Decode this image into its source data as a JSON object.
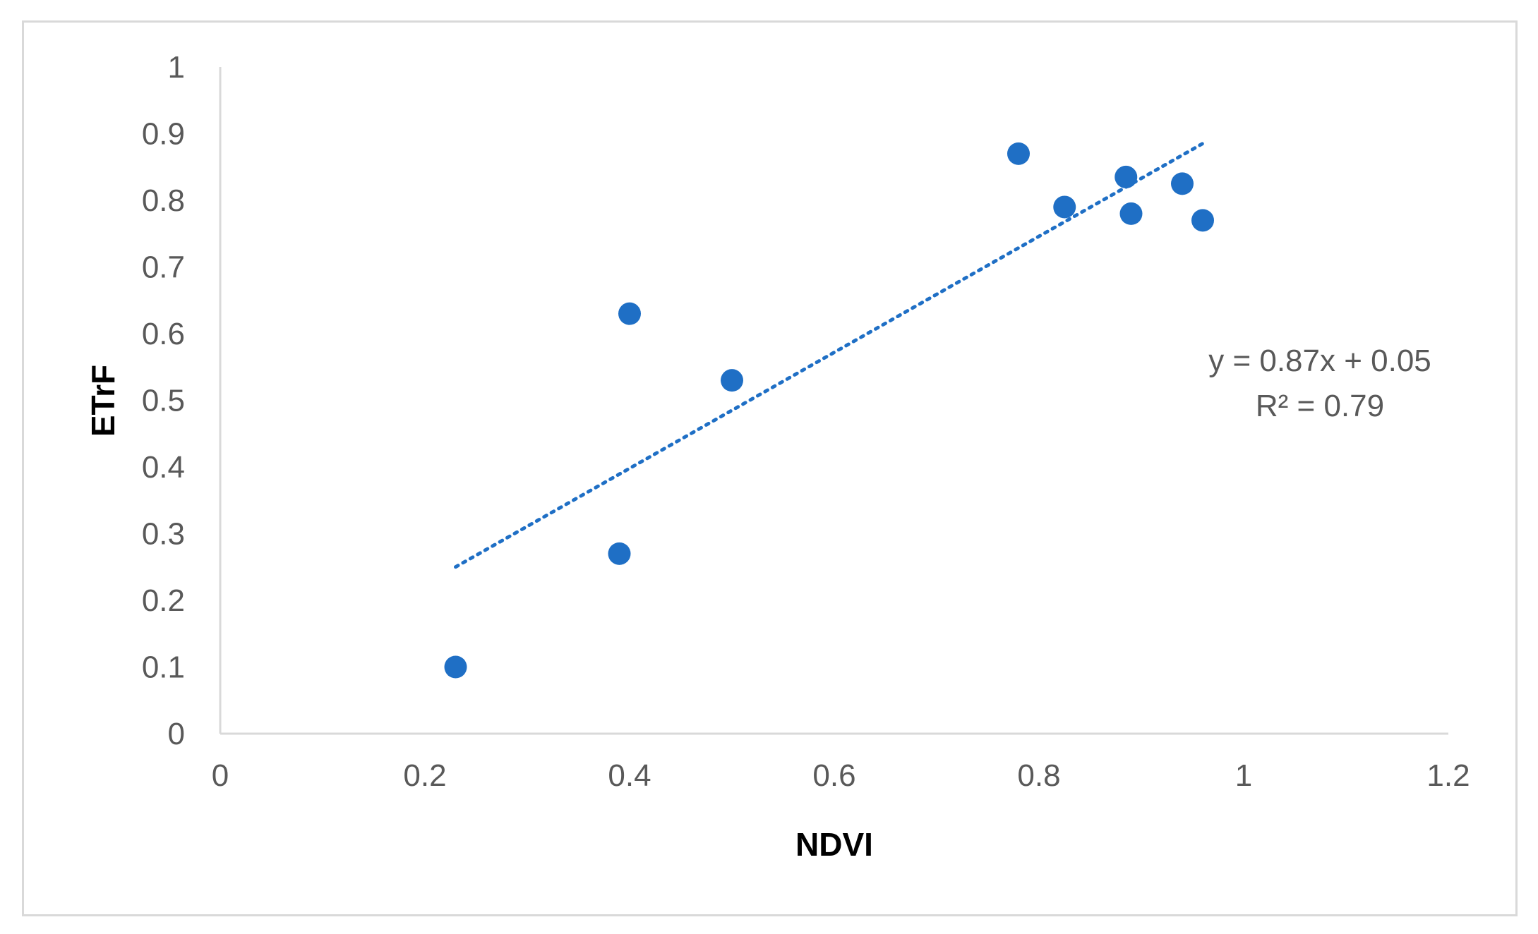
{
  "chart_data": {
    "type": "scatter",
    "xlabel": "NDVI",
    "ylabel": "ETrF",
    "xlim": [
      0,
      1.2
    ],
    "ylim": [
      0,
      1
    ],
    "x_ticks": [
      "0",
      "0.2",
      "0.4",
      "0.6",
      "0.8",
      "1",
      "1.2"
    ],
    "y_ticks": [
      "0",
      "0.1",
      "0.2",
      "0.3",
      "0.4",
      "0.5",
      "0.6",
      "0.7",
      "0.8",
      "0.9",
      "1"
    ],
    "grid": false,
    "legend": "none",
    "marker_color": "#1f6fc5",
    "trendline_color": "#1f6fc5",
    "points": [
      {
        "x": 0.23,
        "y": 0.1
      },
      {
        "x": 0.39,
        "y": 0.27
      },
      {
        "x": 0.4,
        "y": 0.63
      },
      {
        "x": 0.5,
        "y": 0.53
      },
      {
        "x": 0.78,
        "y": 0.87
      },
      {
        "x": 0.825,
        "y": 0.79
      },
      {
        "x": 0.885,
        "y": 0.835
      },
      {
        "x": 0.89,
        "y": 0.78
      },
      {
        "x": 0.94,
        "y": 0.825
      },
      {
        "x": 0.96,
        "y": 0.77
      }
    ],
    "trendline": {
      "type": "linear",
      "slope": 0.87,
      "intercept": 0.05,
      "x_start": 0.23,
      "x_end": 0.96,
      "equation": "y = 0.87x + 0.05",
      "r_squared": "R² = 0.79"
    }
  }
}
